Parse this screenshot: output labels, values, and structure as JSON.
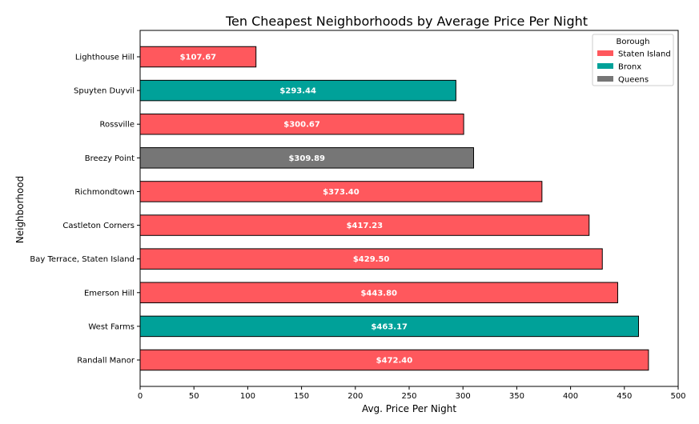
{
  "chart_data": {
    "type": "bar",
    "orientation": "horizontal",
    "title": "Ten Cheapest Neighborhoods by Average Price Per Night",
    "xlabel": "Avg. Price Per Night",
    "ylabel": "Neighborhood",
    "xlim": [
      0,
      500
    ],
    "xticks": [
      0,
      50,
      100,
      150,
      200,
      250,
      300,
      350,
      400,
      450,
      500
    ],
    "grid": false,
    "legend": {
      "title": "Borough",
      "position": "top-right",
      "entries": [
        {
          "name": "Staten Island",
          "color": "#ff585d"
        },
        {
          "name": "Bronx",
          "color": "#00a199"
        },
        {
          "name": "Queens",
          "color": "#767676"
        }
      ]
    },
    "categories": [
      "Lighthouse Hill",
      "Spuyten Duyvil",
      "Rossville",
      "Breezy Point",
      "Richmondtown",
      "Castleton Corners",
      "Bay Terrace, Staten Island",
      "Emerson Hill",
      "West Farms",
      "Randall Manor"
    ],
    "values": [
      107.67,
      293.44,
      300.67,
      309.89,
      373.4,
      417.23,
      429.5,
      443.8,
      463.17,
      472.4
    ],
    "data_labels": [
      "$107.67",
      "$293.44",
      "$300.67",
      "$309.89",
      "$373.40",
      "$417.23",
      "$429.50",
      "$443.80",
      "$463.17",
      "$472.40"
    ],
    "boroughs": [
      "Staten Island",
      "Bronx",
      "Staten Island",
      "Queens",
      "Staten Island",
      "Staten Island",
      "Staten Island",
      "Staten Island",
      "Bronx",
      "Staten Island"
    ]
  }
}
